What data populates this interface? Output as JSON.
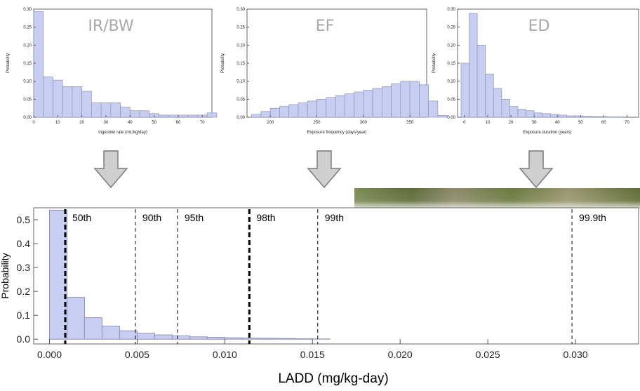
{
  "colors": {
    "bar_fill": "#c8cdf2",
    "bar_stroke": "#8e93b8",
    "panel_title": "#a8a8a8",
    "arrow_fill": "#cfcfcf",
    "photo_green": "#6f7a45"
  },
  "icons": {
    "arrows": "down-arrow-icon"
  },
  "chart_data": [
    {
      "type": "bar",
      "title": "IR/BW",
      "xlabel": "Ingestion rate (mL/kg/day)",
      "ylabel": "Probability",
      "xlim": [
        0,
        74
      ],
      "ylim": [
        0,
        0.3
      ],
      "xticks": [
        0,
        10,
        20,
        30,
        40,
        50,
        60,
        70
      ],
      "yticks": [
        0.0,
        0.05,
        0.1,
        0.15,
        0.2,
        0.25,
        0.3
      ],
      "bin_width": 4,
      "bin_start": 0,
      "values": [
        0.293,
        0.112,
        0.103,
        0.085,
        0.085,
        0.072,
        0.04,
        0.04,
        0.04,
        0.028,
        0.018,
        0.018,
        0.01,
        0.006,
        0.006,
        0.006,
        0.006,
        0.006,
        0.012
      ]
    },
    {
      "type": "bar",
      "title": "EF",
      "xlabel": "Exposure frequency (days/year)",
      "ylabel": "Probability",
      "xlim": [
        175,
        368
      ],
      "ylim": [
        0,
        0.3
      ],
      "xticks": [
        200,
        250,
        300,
        350
      ],
      "yticks": [
        0.0,
        0.05,
        0.1,
        0.15,
        0.2,
        0.25,
        0.3
      ],
      "bin_width": 10,
      "bin_start": 180,
      "values": [
        0.008,
        0.016,
        0.025,
        0.03,
        0.035,
        0.04,
        0.045,
        0.05,
        0.055,
        0.06,
        0.065,
        0.07,
        0.075,
        0.08,
        0.085,
        0.093,
        0.1,
        0.1,
        0.09,
        0.045,
        0.005
      ]
    },
    {
      "type": "bar",
      "title": "ED",
      "xlabel": "Exposure duration (years)",
      "ylabel": "Probability",
      "xlim": [
        -3,
        75
      ],
      "ylim": [
        0,
        0.3
      ],
      "xticks": [
        0,
        10,
        20,
        30,
        40,
        50,
        60,
        70
      ],
      "yticks": [
        0.0,
        0.05,
        0.1,
        0.15,
        0.2,
        0.25,
        0.3
      ],
      "bin_width": 3.5,
      "bin_start": -1.5,
      "values": [
        0.15,
        0.288,
        0.2,
        0.12,
        0.08,
        0.05,
        0.03,
        0.022,
        0.018,
        0.012,
        0.01,
        0.008,
        0.006,
        0.004,
        0.004,
        0.003,
        0.002,
        0.002,
        0.001,
        0.001
      ]
    },
    {
      "type": "bar",
      "title": "",
      "xlabel": "LADD (mg/kg-day)",
      "ylabel": "Probability",
      "xlim": [
        -0.0009,
        0.0336
      ],
      "ylim": [
        -0.02,
        0.55
      ],
      "xticks": [
        "0.000",
        "0.005",
        "0.010",
        "0.015",
        "0.020",
        "0.025",
        "0.030"
      ],
      "yticks": [
        "0.0",
        "0.1",
        "0.2",
        "0.3",
        "0.4",
        "0.5"
      ],
      "bin_width": 0.001,
      "bin_start": 0,
      "values": [
        0.54,
        0.175,
        0.09,
        0.055,
        0.035,
        0.025,
        0.018,
        0.014,
        0.01,
        0.008,
        0.006,
        0.005,
        0.004,
        0.003,
        0.002,
        0.001
      ],
      "percentiles": [
        {
          "label": "50th",
          "x": 0.0009,
          "bold": true
        },
        {
          "label": "90th",
          "x": 0.0049,
          "bold": false
        },
        {
          "label": "95th",
          "x": 0.0073,
          "bold": false
        },
        {
          "label": "98th",
          "x": 0.0114,
          "bold": true
        },
        {
          "label": "99th",
          "x": 0.0153,
          "bold": false
        },
        {
          "label": "99.9th",
          "x": 0.0298,
          "bold": false
        }
      ]
    }
  ]
}
